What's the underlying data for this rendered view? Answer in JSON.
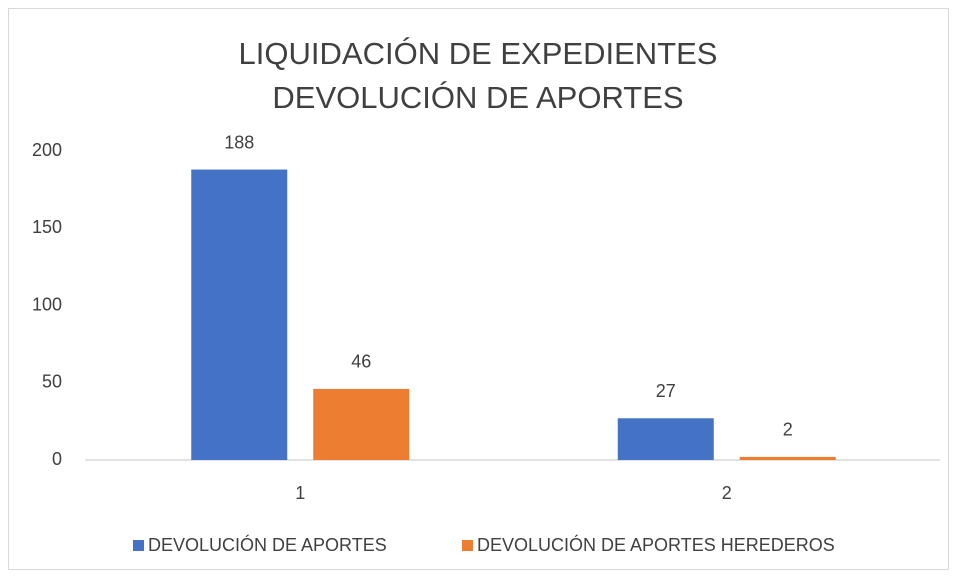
{
  "chart_data": {
    "type": "bar",
    "title": [
      "LIQUIDACIÓN DE EXPEDIENTES",
      "DEVOLUCIÓN DE APORTES"
    ],
    "categories": [
      "1",
      "2"
    ],
    "series": [
      {
        "name": "DEVOLUCIÓN DE APORTES",
        "color": "#4472c4",
        "values": [
          188,
          27
        ]
      },
      {
        "name": "DEVOLUCIÓN DE APORTES HEREDEROS",
        "color": "#ed7d31",
        "values": [
          46,
          2
        ]
      }
    ],
    "ylim": [
      0,
      200
    ],
    "yticks": [
      0,
      50,
      100,
      150,
      200
    ],
    "grid": false,
    "legend": "bottom"
  }
}
